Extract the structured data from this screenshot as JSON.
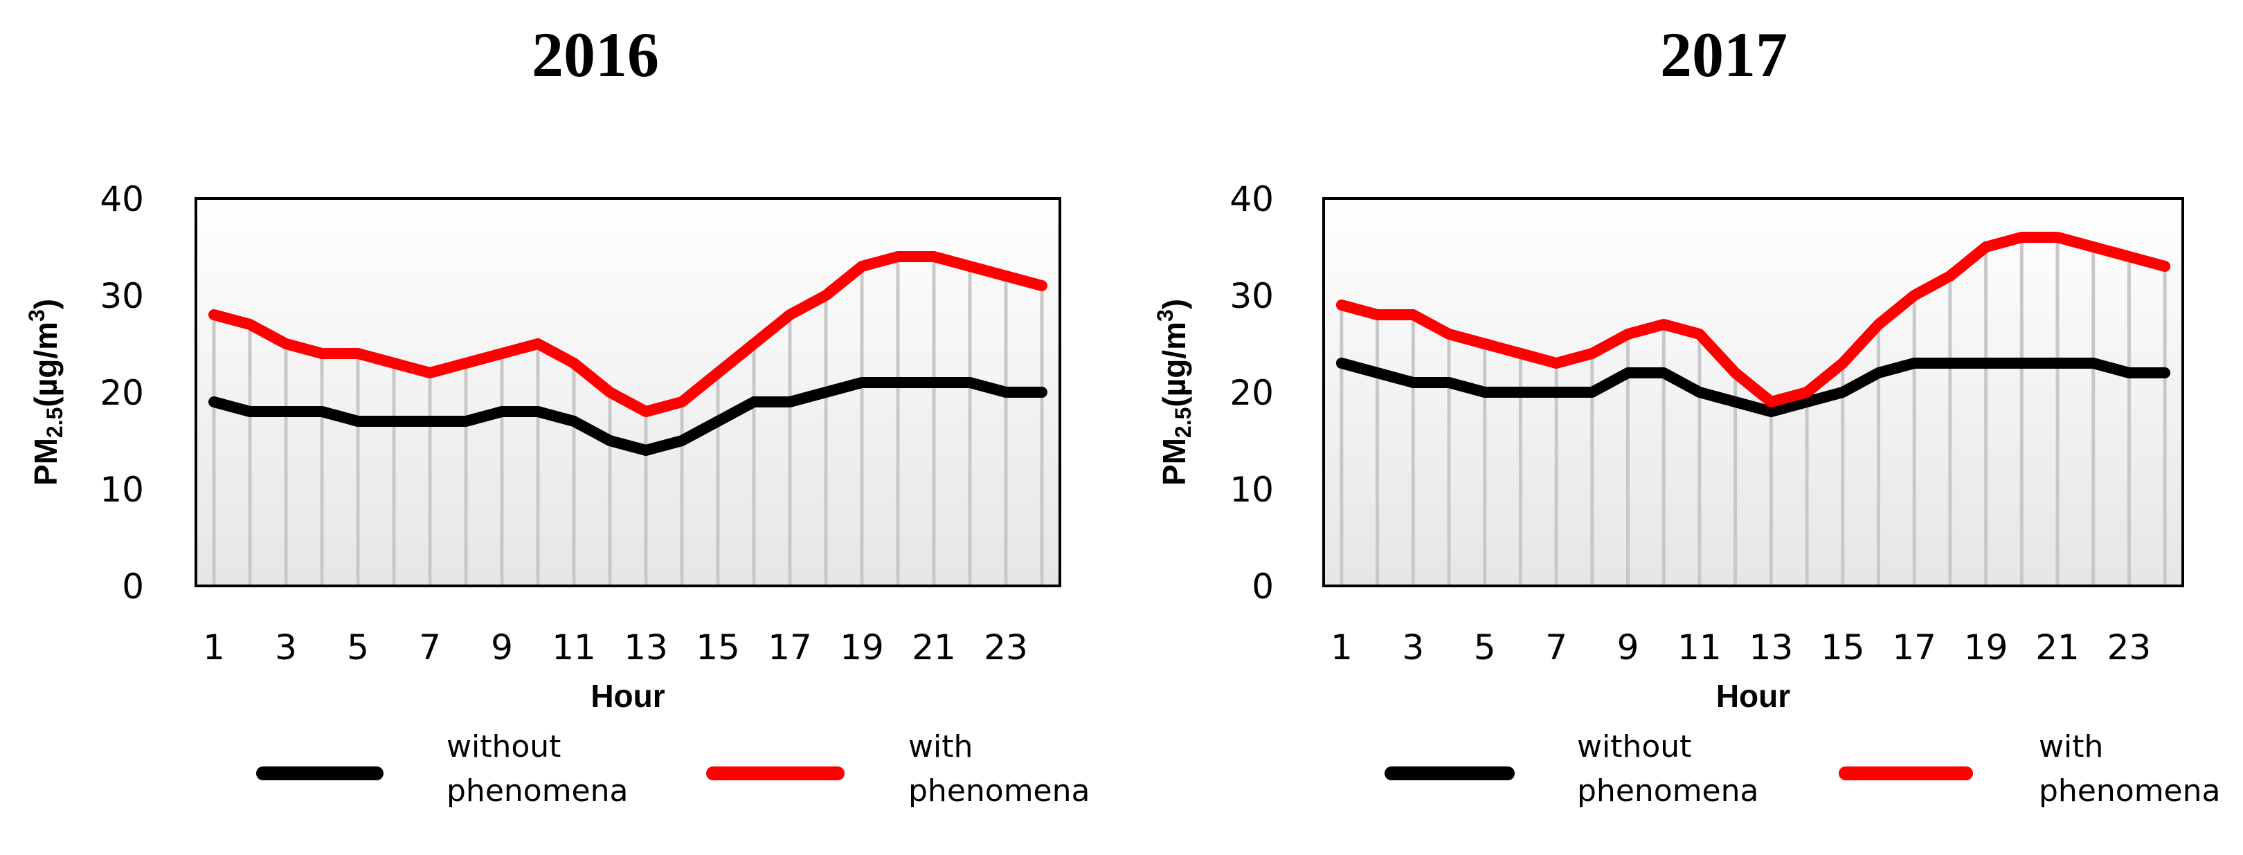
{
  "chart_data": [
    {
      "type": "line",
      "title": "2016",
      "xlabel": "Hour",
      "ylabel": "PM",
      "ylabel_sub": "2.5",
      "ylabel_unit": "(µg/m",
      "ylabel_sup": "3",
      "ylabel_close": ")",
      "ylim": [
        0,
        40
      ],
      "yticks": [
        "0",
        "10",
        "20",
        "30",
        "40"
      ],
      "x": [
        1,
        2,
        3,
        4,
        5,
        6,
        7,
        8,
        9,
        10,
        11,
        12,
        13,
        14,
        15,
        16,
        17,
        18,
        19,
        20,
        21,
        22,
        23,
        24
      ],
      "xticks": [
        "1",
        "3",
        "5",
        "7",
        "9",
        "11",
        "13",
        "15",
        "17",
        "19",
        "21",
        "23"
      ],
      "series": [
        {
          "name": "without phenomena",
          "legend_lines": [
            "without",
            "phenomena"
          ],
          "color": "#000000",
          "values": [
            19,
            18,
            18,
            18,
            17,
            17,
            17,
            17,
            18,
            18,
            17,
            15,
            14,
            15,
            17,
            19,
            19,
            20,
            21,
            21,
            21,
            21,
            20,
            20
          ]
        },
        {
          "name": "with phenomena",
          "legend_lines": [
            "with",
            "phenomena"
          ],
          "color": "#ff0000",
          "values": [
            28,
            27,
            25,
            24,
            24,
            23,
            22,
            23,
            24,
            25,
            23,
            20,
            18,
            19,
            22,
            25,
            28,
            30,
            33,
            34,
            34,
            33,
            32,
            31
          ]
        }
      ]
    },
    {
      "type": "line",
      "title": "2017",
      "xlabel": "Hour",
      "ylabel": "PM",
      "ylabel_sub": "2.5",
      "ylabel_unit": "(µg/m",
      "ylabel_sup": "3",
      "ylabel_close": ")",
      "ylim": [
        0,
        40
      ],
      "yticks": [
        "0",
        "10",
        "20",
        "30",
        "40"
      ],
      "x": [
        1,
        2,
        3,
        4,
        5,
        6,
        7,
        8,
        9,
        10,
        11,
        12,
        13,
        14,
        15,
        16,
        17,
        18,
        19,
        20,
        21,
        22,
        23,
        24
      ],
      "xticks": [
        "1",
        "3",
        "5",
        "7",
        "9",
        "11",
        "13",
        "15",
        "17",
        "19",
        "21",
        "23"
      ],
      "series": [
        {
          "name": "without phenomena",
          "legend_lines": [
            "without",
            "phenomena"
          ],
          "color": "#000000",
          "values": [
            23,
            22,
            21,
            21,
            20,
            20,
            20,
            20,
            22,
            22,
            20,
            19,
            18,
            19,
            20,
            22,
            23,
            23,
            23,
            23,
            23,
            23,
            22,
            22
          ]
        },
        {
          "name": "with phenomena",
          "legend_lines": [
            "with",
            "phenomena"
          ],
          "color": "#ff0000",
          "values": [
            29,
            28,
            28,
            26,
            25,
            24,
            23,
            24,
            26,
            27,
            26,
            22,
            19,
            20,
            23,
            27,
            30,
            32,
            35,
            36,
            36,
            35,
            34,
            33
          ]
        }
      ]
    }
  ]
}
